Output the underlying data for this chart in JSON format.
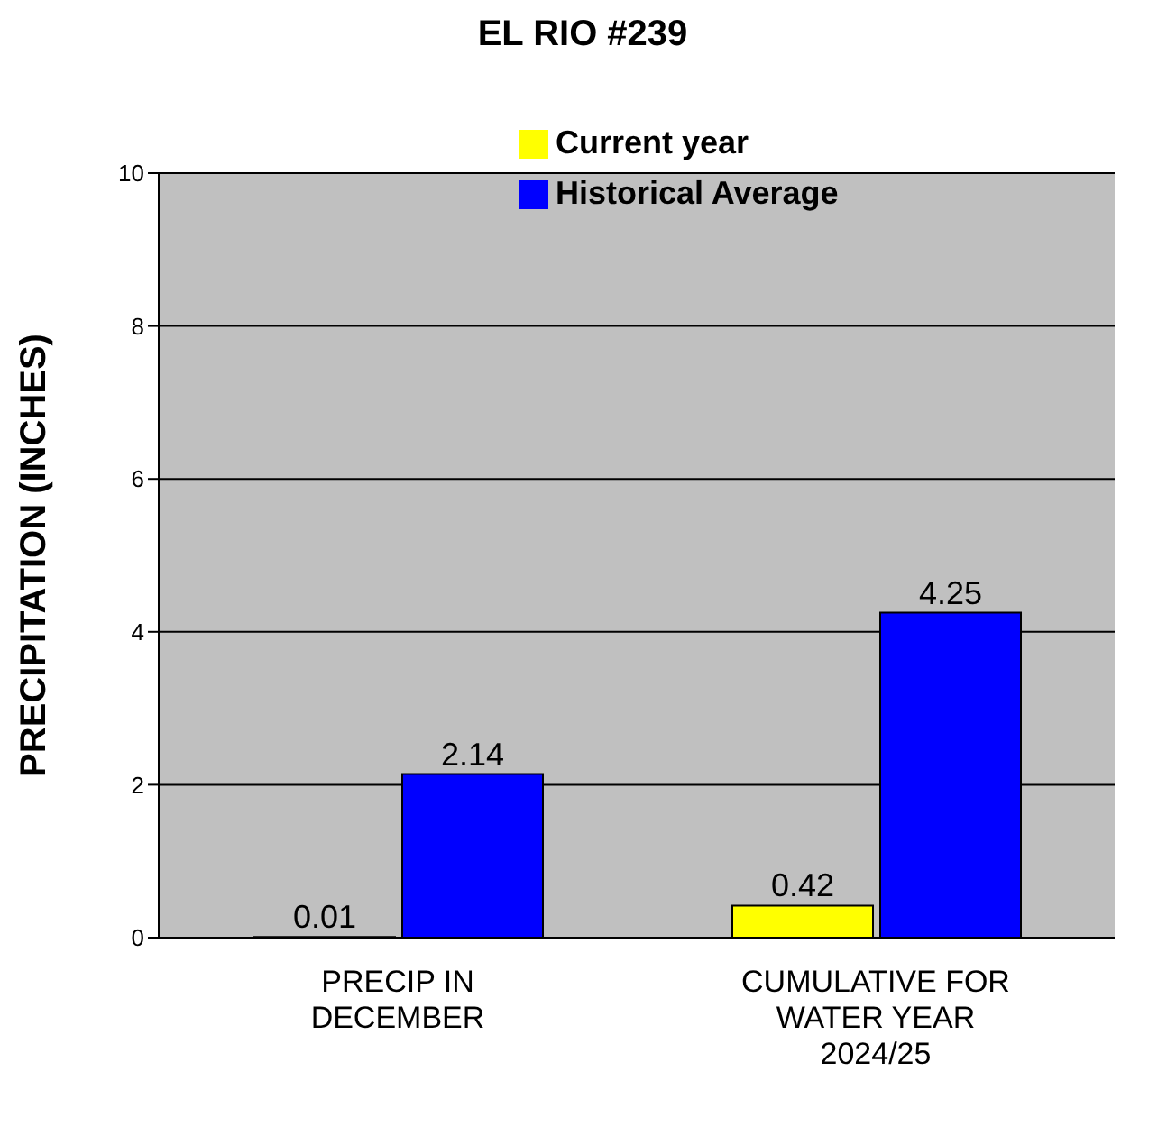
{
  "chart_data": {
    "type": "bar",
    "title": "EL RIO #239",
    "ylabel": "PRECIPITATION  (INCHES)",
    "categories": [
      "PRECIP IN DECEMBER",
      "CUMULATIVE FOR WATER YEAR 2024/25"
    ],
    "series": [
      {
        "name": "Current year",
        "color": "#ffff00",
        "values": [
          0.01,
          0.42
        ]
      },
      {
        "name": "Historical Average",
        "color": "#0000ff",
        "values": [
          2.14,
          4.25
        ]
      }
    ],
    "ylim": [
      0,
      10
    ],
    "yticks": [
      0,
      2,
      4,
      6,
      8,
      10
    ],
    "grid": "y",
    "legend": "top",
    "data_labels": true
  }
}
